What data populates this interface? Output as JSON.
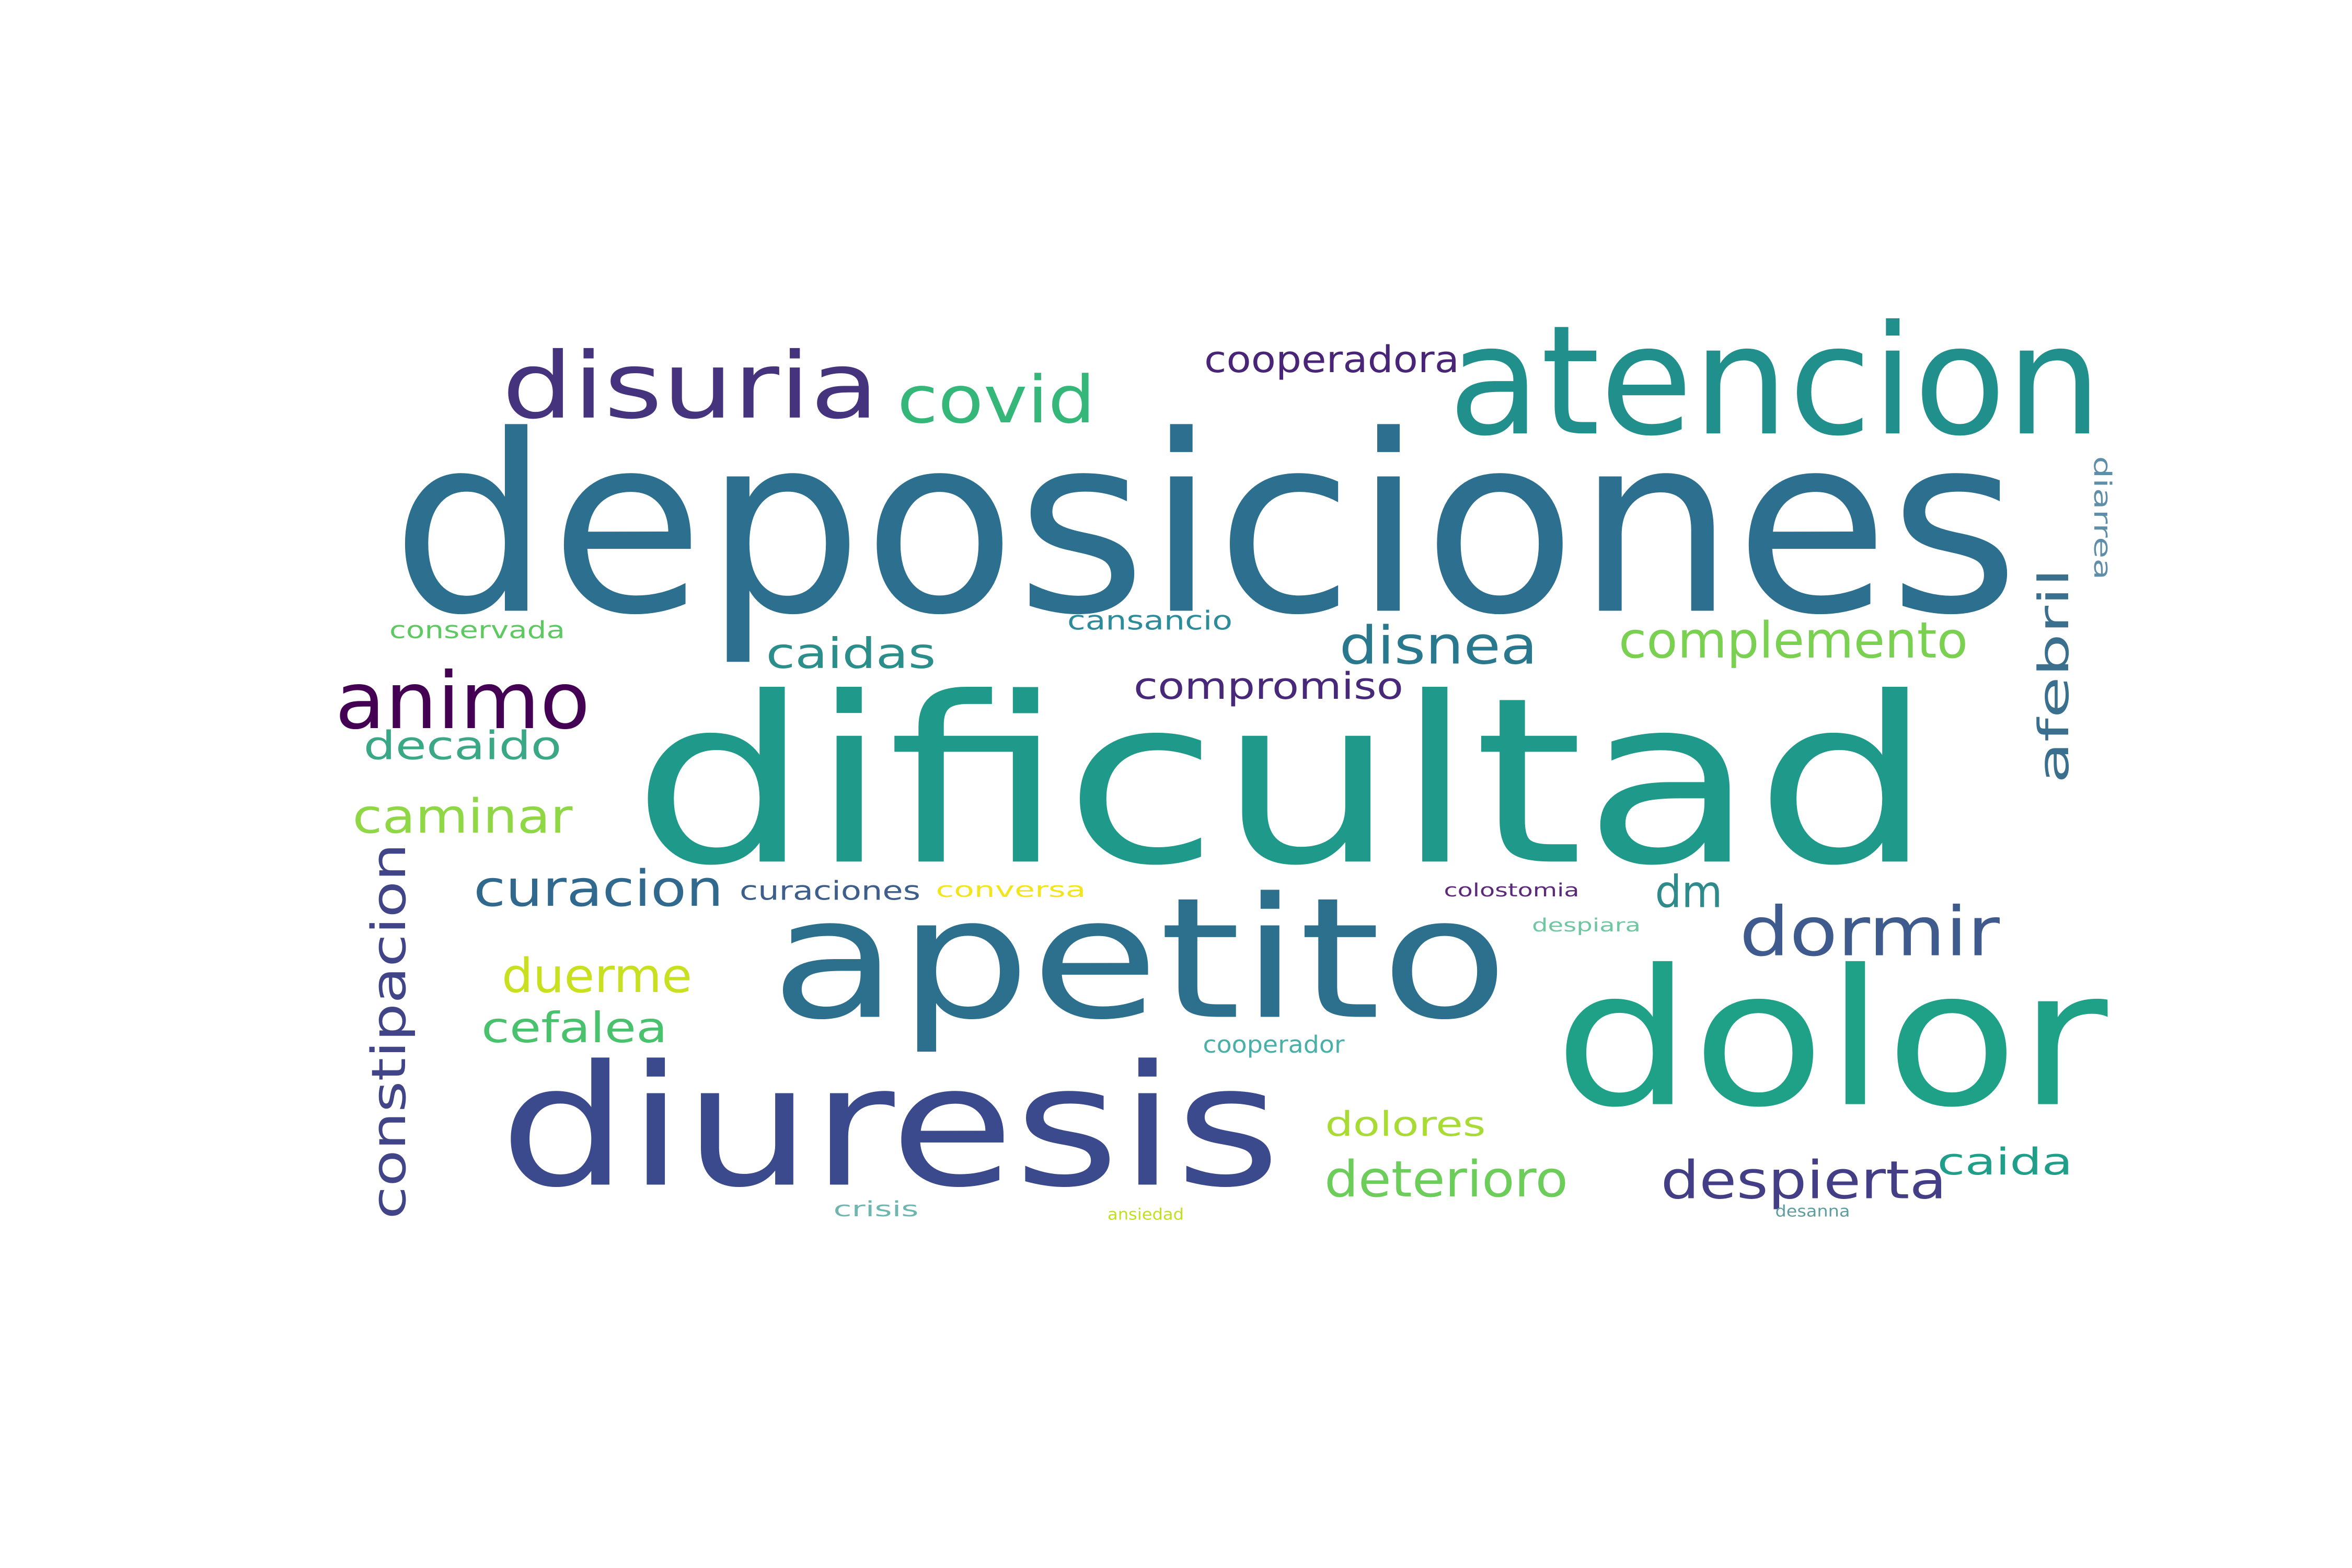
{
  "words": [
    {
      "text": "deposiciones",
      "color": "#2c6f8e"
    },
    {
      "text": "dificultad",
      "color": "#1f9a8a"
    },
    {
      "text": "atencion",
      "color": "#21908d"
    },
    {
      "text": "apetito",
      "color": "#2d708e"
    },
    {
      "text": "dolor",
      "color": "#1fa187"
    },
    {
      "text": "diuresis",
      "color": "#3b4a8c"
    },
    {
      "text": "disuria",
      "color": "#46337e"
    },
    {
      "text": "covid",
      "color": "#35b779"
    },
    {
      "text": "cooperadora",
      "color": "#482576"
    },
    {
      "text": "animo",
      "color": "#440154"
    },
    {
      "text": "decaido",
      "color": "#3aa886"
    },
    {
      "text": "caminar",
      "color": "#8fd744"
    },
    {
      "text": "constipacion",
      "color": "#414487"
    },
    {
      "text": "conservada",
      "color": "#5ec962"
    },
    {
      "text": "caidas",
      "color": "#2c8e8a"
    },
    {
      "text": "cansancio",
      "color": "#2d8c9a"
    },
    {
      "text": "compromiso",
      "color": "#482878"
    },
    {
      "text": "disnea",
      "color": "#2a788e"
    },
    {
      "text": "complemento",
      "color": "#7ad151"
    },
    {
      "text": "afebril",
      "color": "#3b6f8e"
    },
    {
      "text": "diarrea",
      "color": "#5f8fa8"
    },
    {
      "text": "curacion",
      "color": "#31688e"
    },
    {
      "text": "curaciones",
      "color": "#3e5e8c"
    },
    {
      "text": "conversa",
      "color": "#f2e51d"
    },
    {
      "text": "colostomia",
      "color": "#5b2a78"
    },
    {
      "text": "dm",
      "color": "#2f8a8c"
    },
    {
      "text": "dormir",
      "color": "#3f5a8c"
    },
    {
      "text": "despiara",
      "color": "#6fc6a0"
    },
    {
      "text": "duerme",
      "color": "#c8e020"
    },
    {
      "text": "cefalea",
      "color": "#4ac16d"
    },
    {
      "text": "cooperador",
      "color": "#48b0a8"
    },
    {
      "text": "dolores",
      "color": "#a8db34"
    },
    {
      "text": "deterioro",
      "color": "#6ccd5a"
    },
    {
      "text": "despierta",
      "color": "#433e85"
    },
    {
      "text": "caida",
      "color": "#1f9e89"
    },
    {
      "text": "crisis",
      "color": "#6fb6b0"
    },
    {
      "text": "ansiedad",
      "color": "#c2df23"
    },
    {
      "text": "desanna",
      "color": "#5e9ea0"
    }
  ]
}
